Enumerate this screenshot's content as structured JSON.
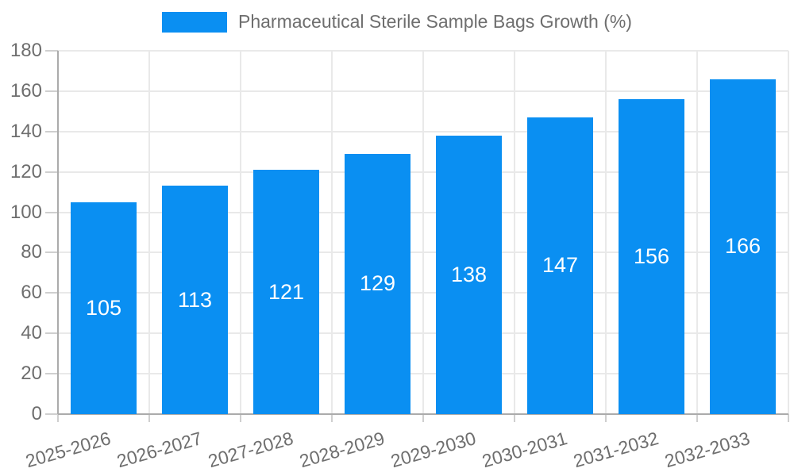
{
  "chart_data": {
    "type": "bar",
    "title": "Pharmaceutical Sterile Sample Bags Growth (%)",
    "categories": [
      "2025-2026",
      "2026-2027",
      "2027-2028",
      "2028-2029",
      "2029-2030",
      "2030-2031",
      "2031-2032",
      "2032-2033"
    ],
    "values": [
      105,
      113,
      121,
      129,
      138,
      147,
      156,
      166
    ],
    "xlabel": "",
    "ylabel": "",
    "ylim": [
      0,
      180
    ],
    "yticks": [
      0,
      20,
      40,
      60,
      80,
      100,
      120,
      140,
      160,
      180
    ],
    "grid": true,
    "legend_position": "top",
    "bar_labels_inside": true,
    "x_tick_rotation_deg": -16,
    "colors": {
      "bar": "#0a8ff2",
      "bar_label": "#ffffff",
      "text": "#6e6e6e",
      "grid": "#e9e9e9",
      "tick": "#cfcfcf",
      "axis": "#ababab",
      "background": "#ffffff"
    }
  }
}
